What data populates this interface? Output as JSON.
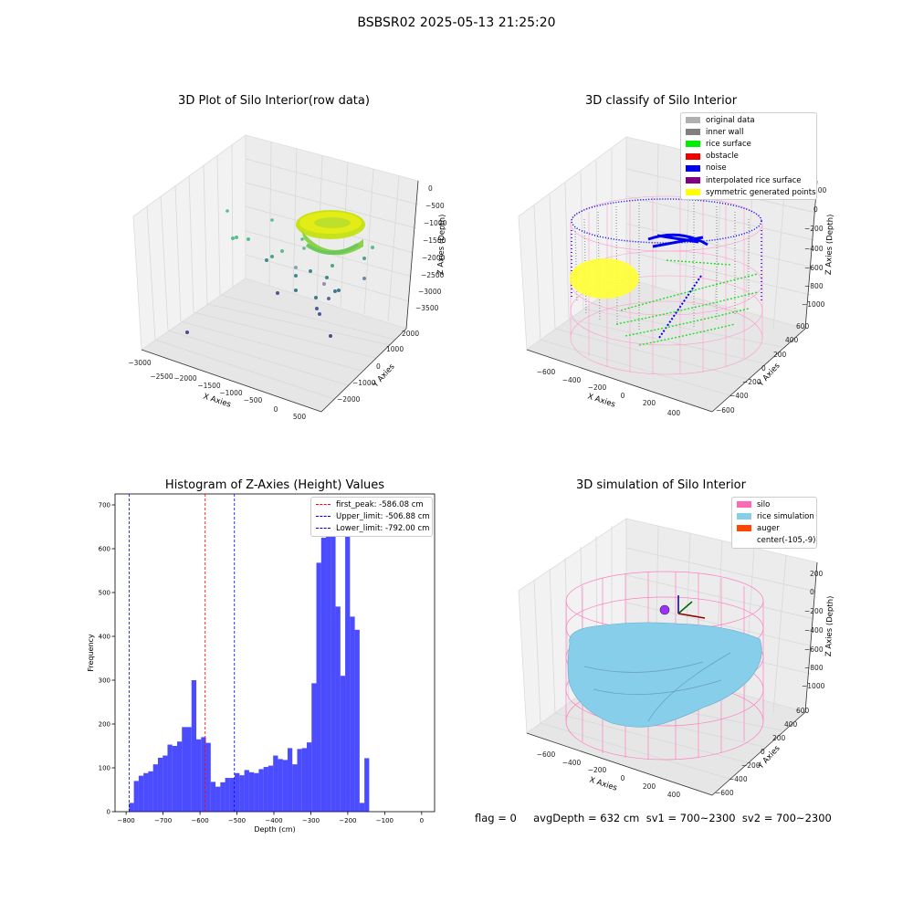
{
  "suptitle": "BSBSR02 2025-05-13 21:25:20",
  "panels": {
    "raw": {
      "title": "3D Plot of Silo Interior(row data)",
      "xlabel": "X Axies",
      "ylabel": "Y Axies",
      "zlabel": "Z Axies (Depth)",
      "xticks": [
        "−3000",
        "−2500",
        "−2000",
        "−1500",
        "−1000",
        "−500",
        "0",
        "500"
      ],
      "yticks": [
        "2000",
        "1000",
        "0",
        "−1000",
        "−2000"
      ],
      "zticks": [
        "0",
        "−500",
        "−1000",
        "−1500",
        "−2000",
        "−2500",
        "−3000",
        "−3500"
      ]
    },
    "classify": {
      "title": "3D classify of Silo Interior",
      "xlabel": "X Axies",
      "ylabel": "Y Axies",
      "zlabel": "Z Axies (Depth)",
      "xticks": [
        "−600",
        "−400",
        "−200",
        "0",
        "200",
        "400"
      ],
      "yticks": [
        "600",
        "400",
        "200",
        "0",
        "−200",
        "−400",
        "−600"
      ],
      "zticks": [
        "200",
        "0",
        "−200",
        "−400",
        "−600",
        "−800",
        "−1000"
      ],
      "legend": [
        {
          "label": "original data",
          "color": "#b0b0b0"
        },
        {
          "label": "inner wall",
          "color": "#808080"
        },
        {
          "label": "rice surface",
          "color": "#00ee00"
        },
        {
          "label": "obstacle",
          "color": "#ee0000"
        },
        {
          "label": "noise",
          "color": "#0000ee"
        },
        {
          "label": "interpolated rice surface",
          "color": "#800080"
        },
        {
          "label": "symmetric generated points",
          "color": "#ffff00"
        }
      ]
    },
    "simulation": {
      "title": "3D simulation of Silo Interior",
      "xlabel": "X Axies",
      "ylabel": "Y Axies",
      "zlabel": "Z Axies (Depth)",
      "xticks": [
        "−600",
        "−400",
        "−200",
        "0",
        "200",
        "400"
      ],
      "yticks": [
        "600",
        "400",
        "200",
        "0",
        "−200",
        "−400",
        "−600"
      ],
      "zticks": [
        "200",
        "0",
        "−200",
        "−400",
        "−600",
        "−800",
        "−1000"
      ],
      "legend": [
        {
          "label": "silo",
          "color": "#ff69b4"
        },
        {
          "label": "rice simulation",
          "color": "#87ceeb"
        },
        {
          "label": "auger",
          "color": "#ff4500"
        },
        {
          "label": "center(-105,-9)",
          "color": ""
        }
      ]
    }
  },
  "footer": "flag = 0     avgDepth = 632 cm  sv1 = 700~2300  sv2 = 700~2300",
  "chart_data": {
    "type": "bar",
    "title": "Histogram of Z-Axies (Height) Values",
    "xlabel": "Depth (cm)",
    "ylabel": "Frequency",
    "xlim": [
      -830,
      35
    ],
    "ylim": [
      0,
      725
    ],
    "xticks": [
      -800,
      -700,
      -600,
      -500,
      -400,
      -300,
      -200,
      -100,
      0
    ],
    "xtick_labels": [
      "−800",
      "−700",
      "−600",
      "−500",
      "−400",
      "−300",
      "−200",
      "−100",
      "0"
    ],
    "yticks": [
      0,
      100,
      200,
      300,
      400,
      500,
      600,
      700
    ],
    "bin_start": -792,
    "bin_width": 13,
    "values": [
      20,
      70,
      82,
      88,
      92,
      108,
      123,
      128,
      153,
      150,
      160,
      193,
      193,
      300,
      165,
      170,
      157,
      68,
      57,
      67,
      77,
      77,
      88,
      83,
      95,
      90,
      88,
      97,
      102,
      105,
      128,
      120,
      118,
      145,
      108,
      143,
      145,
      158,
      293,
      568,
      625,
      630,
      628,
      468,
      310,
      715,
      445,
      415,
      20,
      122
    ],
    "bar_color": "#0000ff",
    "vlines": [
      {
        "x": -586.08,
        "label": "first_peak: -586.08 cm",
        "color": "#ff0000"
      },
      {
        "x": -506.88,
        "label": "Upper_limit: -506.88 cm",
        "color": "#0000ff"
      },
      {
        "x": -792.0,
        "label": "Lower_limit: -792.00 cm",
        "color": "#0000ff"
      }
    ],
    "legend_position": "top-right"
  }
}
